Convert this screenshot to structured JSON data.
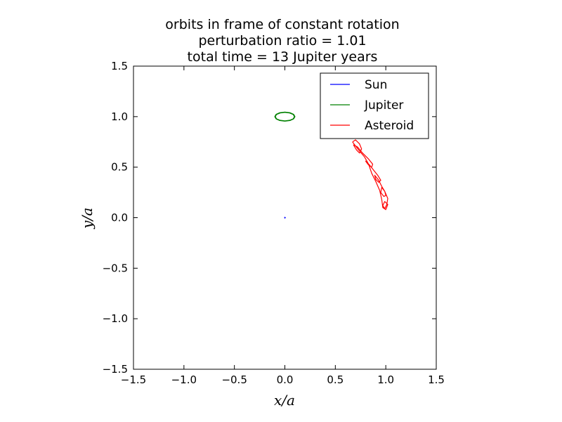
{
  "chart_data": {
    "type": "line",
    "title": [
      "orbits in frame of constant rotation",
      "perturbation ratio = 1.01",
      "total time = 13 Jupiter years"
    ],
    "xlabel": "x/a",
    "ylabel": "y/a",
    "xlim": [
      -1.5,
      1.5
    ],
    "ylim": [
      -1.5,
      1.5
    ],
    "xticks": [
      -1.5,
      -1.0,
      -0.5,
      0.0,
      0.5,
      1.0,
      1.5
    ],
    "yticks": [
      -1.5,
      -1.0,
      -0.5,
      0.0,
      0.5,
      1.0,
      1.5
    ],
    "xtick_labels": [
      "−1.5",
      "−1.0",
      "−0.5",
      "0.0",
      "0.5",
      "1.0",
      "1.5"
    ],
    "ytick_labels": [
      "−1.5",
      "−1.0",
      "−0.5",
      "0.0",
      "0.5",
      "1.0",
      "1.5"
    ],
    "grid": false,
    "legend_position": "top-right",
    "series": [
      {
        "name": "Sun",
        "color": "#0000ff",
        "x": [
          -0.005,
          0.0,
          0.005,
          0.0,
          -0.005
        ],
        "y": [
          0.0,
          0.004,
          0.0,
          -0.004,
          0.0
        ]
      },
      {
        "name": "Jupiter",
        "color": "#008000",
        "x": [
          0.1,
          0.087,
          0.05,
          0.0,
          -0.05,
          -0.087,
          -0.1,
          -0.087,
          -0.05,
          0.0,
          0.05,
          0.087,
          0.1,
          0.095,
          0.083,
          0.047,
          0.0,
          -0.047,
          -0.083,
          -0.095,
          -0.083,
          -0.047,
          0.0,
          0.047,
          0.083,
          0.095
        ],
        "y": [
          1.0,
          1.023,
          1.039,
          1.045,
          1.039,
          1.023,
          1.0,
          0.977,
          0.961,
          0.955,
          0.961,
          0.977,
          1.0,
          1.0,
          1.021,
          1.036,
          1.042,
          1.036,
          1.021,
          1.0,
          0.979,
          0.964,
          0.958,
          0.964,
          0.979,
          1.0
        ]
      },
      {
        "name": "Asteroid",
        "color": "#ff0000",
        "x": [
          0.67,
          0.7,
          0.74,
          0.76,
          0.74,
          0.71,
          0.68,
          0.72,
          0.77,
          0.83,
          0.87,
          0.86,
          0.83,
          0.8,
          0.84,
          0.88,
          0.92,
          0.95,
          0.93,
          0.9,
          0.89,
          0.93,
          0.96,
          0.99,
          1.0,
          0.98,
          0.95,
          0.96,
          0.99,
          1.02,
          1.01,
          0.99,
          0.97,
          0.99,
          1.02,
          1.0,
          0.97,
          0.96,
          0.94,
          0.9,
          0.86,
          0.83,
          0.79,
          0.74,
          0.7,
          0.67
        ],
        "y": [
          0.75,
          0.77,
          0.73,
          0.68,
          0.64,
          0.67,
          0.72,
          0.7,
          0.64,
          0.58,
          0.53,
          0.5,
          0.52,
          0.56,
          0.52,
          0.47,
          0.42,
          0.37,
          0.35,
          0.38,
          0.42,
          0.37,
          0.31,
          0.26,
          0.22,
          0.21,
          0.25,
          0.3,
          0.26,
          0.19,
          0.13,
          0.09,
          0.12,
          0.16,
          0.13,
          0.08,
          0.1,
          0.18,
          0.27,
          0.36,
          0.44,
          0.53,
          0.6,
          0.66,
          0.71,
          0.75
        ]
      }
    ]
  }
}
